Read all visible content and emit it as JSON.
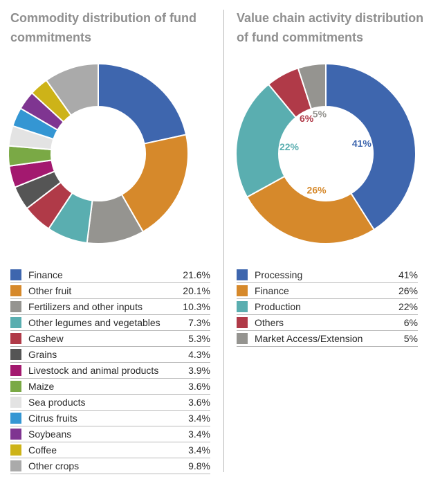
{
  "chart_data": [
    {
      "type": "pie",
      "title": "Commodity distribution of fund commitments",
      "categories": [
        "Finance",
        "Other fruit",
        "Fertilizers and other inputs",
        "Other legumes and vegetables",
        "Cashew",
        "Grains",
        "Livestock and animal products",
        "Maize",
        "Sea products",
        "Citrus fruits",
        "Soybeans",
        "Coffee",
        "Other crops"
      ],
      "values": [
        21.6,
        20.1,
        10.3,
        7.3,
        5.3,
        4.3,
        3.9,
        3.6,
        3.6,
        3.4,
        3.4,
        3.4,
        9.8
      ],
      "value_labels": [
        "21.6%",
        "20.1%",
        "10.3%",
        "7.3%",
        "5.3%",
        "4.3%",
        "3.9%",
        "3.6%",
        "3.6%",
        "3.4%",
        "3.4%",
        "3.4%",
        "9.8%"
      ],
      "colors": [
        "#3e66ae",
        "#d6892b",
        "#959490",
        "#5aaeb0",
        "#b03a48",
        "#555555",
        "#a3196f",
        "#7aa945",
        "#e3e3e3",
        "#3496d3",
        "#7f3591",
        "#cdb318",
        "#aaaaaa"
      ],
      "show_slice_labels": false,
      "legend_position": "bottom",
      "donut": true
    },
    {
      "type": "pie",
      "title": "Value chain activity distribution of fund commitments",
      "categories": [
        "Processing",
        "Finance",
        "Production",
        "Others",
        "Market Access/Extension"
      ],
      "values": [
        41,
        26,
        22,
        6,
        5
      ],
      "value_labels": [
        "41%",
        "26%",
        "22%",
        "6%",
        "5%"
      ],
      "colors": [
        "#3e66ae",
        "#d6892b",
        "#5aaeb0",
        "#b03a48",
        "#959490"
      ],
      "show_slice_labels": true,
      "legend_position": "bottom",
      "donut": true
    }
  ]
}
